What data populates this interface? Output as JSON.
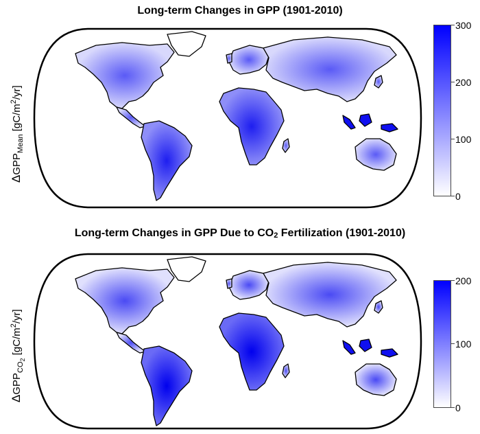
{
  "panels": [
    {
      "title": "Long-term Changes in GPP (1901-2010)",
      "ylabel": {
        "symbol": "Δ",
        "var": "GPP",
        "sub": "Mean",
        "unit_pre": "[gC/m",
        "unit_sup": "2",
        "unit_post": "/yr]"
      },
      "colorbar": {
        "min": 0,
        "max": 300,
        "ticks": [
          "300",
          "200",
          "100",
          "0"
        ]
      }
    },
    {
      "title_pre": "Long-term Changes in GPP Due to CO",
      "title_sub": "2",
      "title_post": " Fertilization (1901-2010)",
      "ylabel": {
        "symbol": "Δ",
        "var": "GPP",
        "sub": "CO",
        "subsub": "2",
        "unit_pre": "[gC/m",
        "unit_sup": "2",
        "unit_post": "/yr]"
      },
      "colorbar": {
        "min": 0,
        "max": 200,
        "ticks": [
          "200",
          "100",
          "0"
        ]
      }
    }
  ],
  "colors": {
    "high": "#0000ff",
    "low": "#ffffff",
    "coast": "#000000"
  }
}
